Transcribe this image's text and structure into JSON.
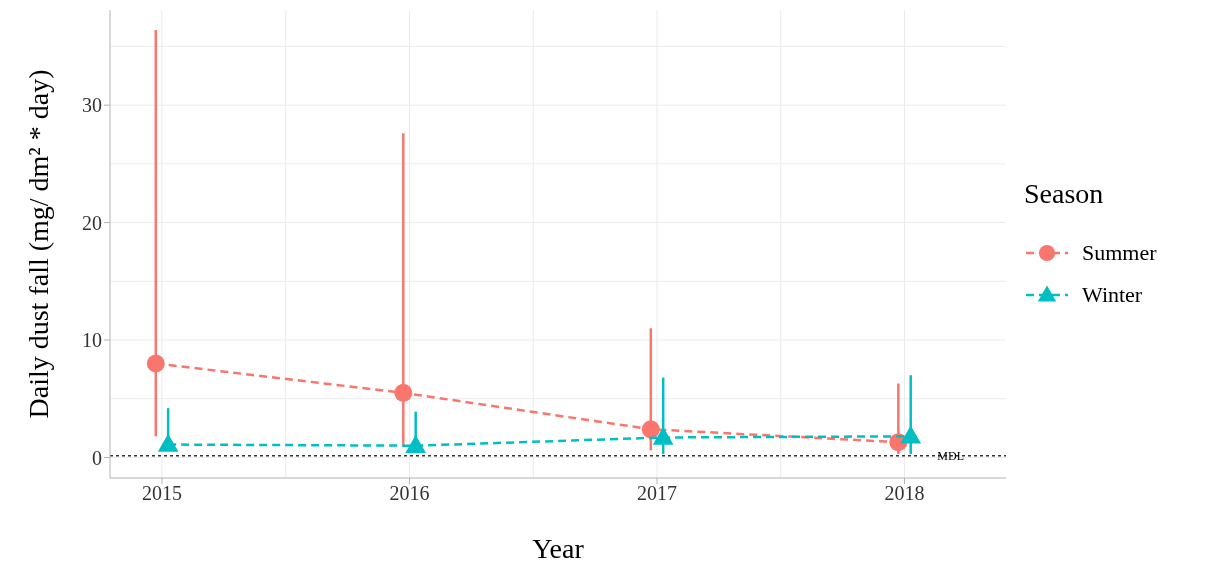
{
  "chart_data": {
    "type": "line",
    "xlabel": "Year",
    "ylabel": "Daily dust fall (mg/ dm² * day)",
    "legend_title": "Season",
    "xlim": [
      2014.79,
      2018.41
    ],
    "xticks": [
      2015,
      2016,
      2017,
      2018
    ],
    "ylim": [
      -1.75,
      38.1
    ],
    "yticks": [
      0,
      10,
      20,
      30
    ],
    "grid": true,
    "legend": "right",
    "line_style": "dashed",
    "series": [
      {
        "name": "Summer",
        "color": "#f8766d",
        "marker": "circle",
        "x": [
          2014.975,
          2015.975,
          2016.975,
          2017.975
        ],
        "values": [
          8.0,
          5.5,
          2.4,
          1.3
        ],
        "errors": [
          [
            1.8,
            36.4
          ],
          [
            1.0,
            27.6
          ],
          [
            0.6,
            11.0
          ],
          [
            0.3,
            6.3
          ]
        ]
      },
      {
        "name": "Winter",
        "color": "#00bfc4",
        "marker": "triangle",
        "x": [
          2015.025,
          2016.025,
          2017.025,
          2018.025
        ],
        "values": [
          1.1,
          1.0,
          1.7,
          1.8
        ],
        "errors": [
          [
            0.6,
            4.2
          ],
          [
            0.6,
            3.9
          ],
          [
            0.3,
            6.8
          ],
          [
            0.3,
            7.0
          ]
        ]
      }
    ],
    "ref_lines": [
      {
        "axis": "y",
        "value": 0.15,
        "label": "MDL",
        "color": "#333333",
        "line_style": "dotted"
      }
    ]
  }
}
